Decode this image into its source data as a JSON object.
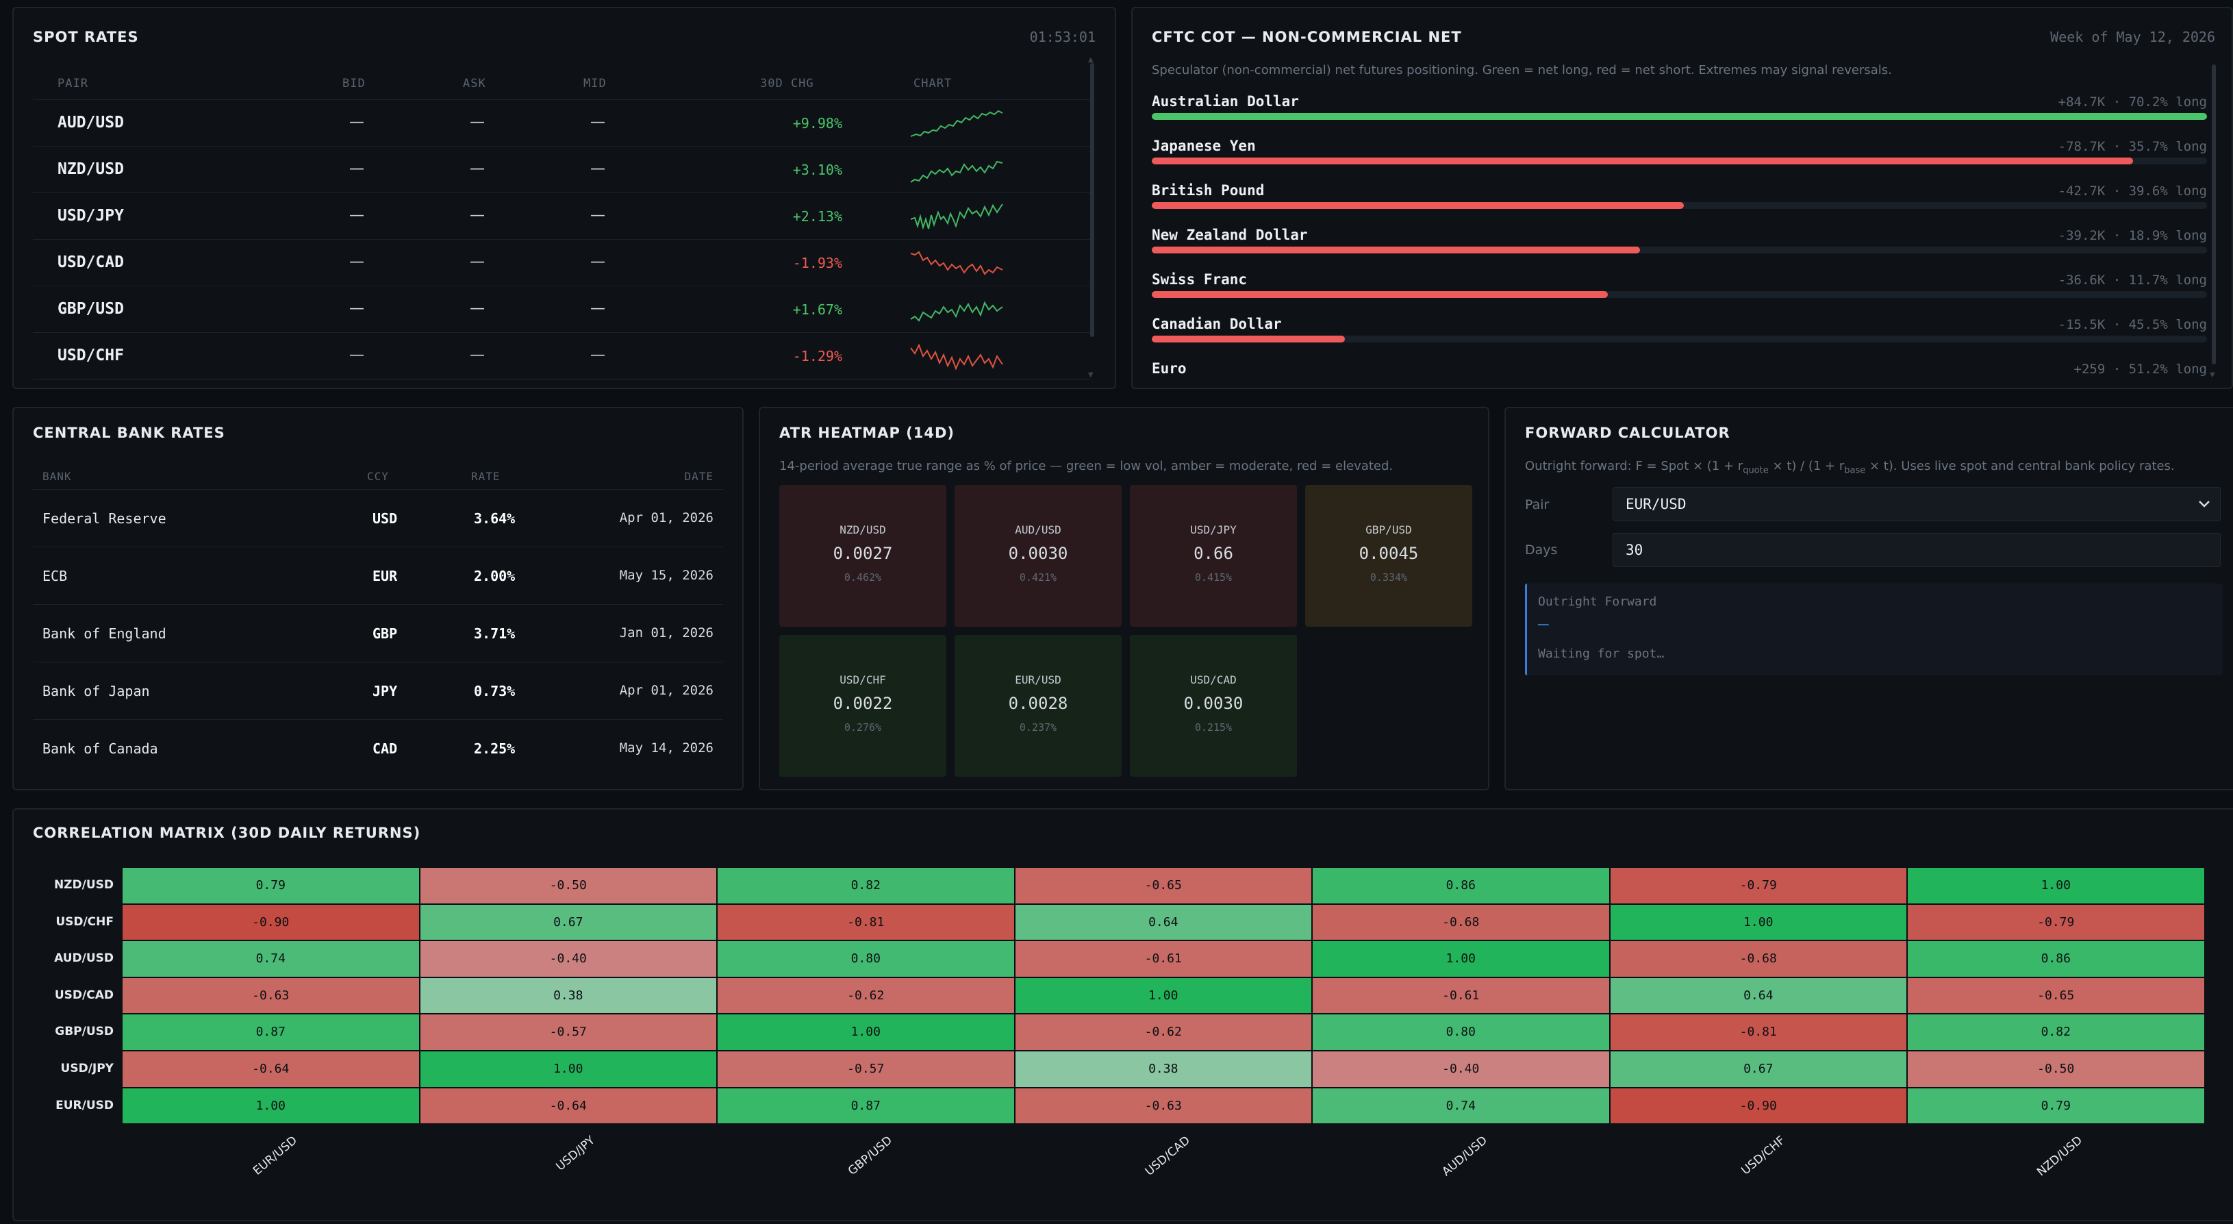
{
  "spot": {
    "title": "SPOT RATES",
    "time": "01:53:01",
    "headers": {
      "pair": "PAIR",
      "bid": "BID",
      "ask": "ASK",
      "mid": "MID",
      "chg": "30D CHG",
      "chart": "CHART"
    },
    "rows": [
      {
        "pair": "AUD/USD",
        "bid": "—",
        "ask": "—",
        "mid": "—",
        "chg": "+9.98%",
        "dir": "up"
      },
      {
        "pair": "NZD/USD",
        "bid": "—",
        "ask": "—",
        "mid": "—",
        "chg": "+3.10%",
        "dir": "up"
      },
      {
        "pair": "USD/JPY",
        "bid": "—",
        "ask": "—",
        "mid": "—",
        "chg": "+2.13%",
        "dir": "up"
      },
      {
        "pair": "USD/CAD",
        "bid": "—",
        "ask": "—",
        "mid": "—",
        "chg": "-1.93%",
        "dir": "down"
      },
      {
        "pair": "GBP/USD",
        "bid": "—",
        "ask": "—",
        "mid": "—",
        "chg": "+1.67%",
        "dir": "up"
      },
      {
        "pair": "USD/CHF",
        "bid": "—",
        "ask": "—",
        "mid": "—",
        "chg": "-1.29%",
        "dir": "down"
      }
    ]
  },
  "cot": {
    "title": "CFTC COT — NON-COMMERCIAL NET",
    "week": "Week of May 12, 2026",
    "desc": "Speculator (non-commercial) net futures positioning. Green = net long, red = net short. Extremes may signal reversals.",
    "rows": [
      {
        "name": "Australian Dollar",
        "value": "+84.7K · 70.2% long",
        "fill": 1.0,
        "color": "#4cc56a"
      },
      {
        "name": "Japanese Yen",
        "value": "-78.7K · 35.7% long",
        "fill": 0.93,
        "color": "#ef5b5b"
      },
      {
        "name": "British Pound",
        "value": "-42.7K · 39.6% long",
        "fill": 0.504,
        "color": "#ef5b5b"
      },
      {
        "name": "New Zealand Dollar",
        "value": "-39.2K · 18.9% long",
        "fill": 0.463,
        "color": "#ef5b5b"
      },
      {
        "name": "Swiss Franc",
        "value": "-36.6K · 11.7% long",
        "fill": 0.432,
        "color": "#ef5b5b"
      },
      {
        "name": "Canadian Dollar",
        "value": "-15.5K · 45.5% long",
        "fill": 0.183,
        "color": "#ef5b5b"
      },
      {
        "name": "Euro",
        "value": "+259 · 51.2% long",
        "fill": 0.003,
        "color": "#4cc56a"
      }
    ]
  },
  "cb": {
    "title": "CENTRAL BANK RATES",
    "headers": {
      "bank": "BANK",
      "ccy": "CCY",
      "rate": "RATE",
      "date": "DATE"
    },
    "rows": [
      {
        "bank": "Federal Reserve",
        "ccy": "USD",
        "rate": "3.64%",
        "date": "Apr 01, 2026"
      },
      {
        "bank": "ECB",
        "ccy": "EUR",
        "rate": "2.00%",
        "date": "May 15, 2026"
      },
      {
        "bank": "Bank of England",
        "ccy": "GBP",
        "rate": "3.71%",
        "date": "Jan 01, 2026"
      },
      {
        "bank": "Bank of Japan",
        "ccy": "JPY",
        "rate": "0.73%",
        "date": "Apr 01, 2026"
      },
      {
        "bank": "Bank of Canada",
        "ccy": "CAD",
        "rate": "2.25%",
        "date": "May 14, 2026"
      }
    ]
  },
  "atr": {
    "title": "ATR HEATMAP (14D)",
    "desc": "14-period average true range as % of price — green = low vol, amber = moderate, red = elevated.",
    "tiles": [
      {
        "pair": "NZD/USD",
        "value": "0.0027",
        "pct": "0.462%",
        "level": "high"
      },
      {
        "pair": "AUD/USD",
        "value": "0.0030",
        "pct": "0.421%",
        "level": "high"
      },
      {
        "pair": "USD/JPY",
        "value": "0.66",
        "pct": "0.415%",
        "level": "high"
      },
      {
        "pair": "GBP/USD",
        "value": "0.0045",
        "pct": "0.334%",
        "level": "moderate"
      },
      {
        "pair": "USD/CHF",
        "value": "0.0022",
        "pct": "0.276%",
        "level": "low"
      },
      {
        "pair": "EUR/USD",
        "value": "0.0028",
        "pct": "0.237%",
        "level": "low"
      },
      {
        "pair": "USD/CAD",
        "value": "0.0030",
        "pct": "0.215%",
        "level": "low"
      }
    ]
  },
  "forward": {
    "title": "FORWARD CALCULATOR",
    "desc_a": "Outright forward: F = Spot × (1 + r",
    "desc_quote": "quote",
    "desc_b": " × t) / (1 + r",
    "desc_base": "base",
    "desc_c": " × t). Uses live spot and central bank policy rates.",
    "pair_label": "Pair",
    "pair_value": "EUR/USD",
    "days_label": "Days",
    "days_value": "30",
    "result_label": "Outright Forward",
    "result_value": "—",
    "result_status": "Waiting for spot…"
  },
  "corr": {
    "title": "CORRELATION MATRIX (30D DAILY RETURNS)",
    "rows": [
      "NZD/USD",
      "USD/CHF",
      "AUD/USD",
      "USD/CAD",
      "GBP/USD",
      "USD/JPY",
      "EUR/USD"
    ],
    "cols": [
      "EUR/USD",
      "USD/JPY",
      "GBP/USD",
      "USD/CAD",
      "AUD/USD",
      "USD/CHF",
      "NZD/USD"
    ],
    "values": [
      [
        "0.79",
        "-0.50",
        "0.82",
        "-0.65",
        "0.86",
        "-0.79",
        "1.00"
      ],
      [
        "-0.90",
        "0.67",
        "-0.81",
        "0.64",
        "-0.68",
        "1.00",
        "-0.79"
      ],
      [
        "0.74",
        "-0.40",
        "0.80",
        "-0.61",
        "1.00",
        "-0.68",
        "0.86"
      ],
      [
        "-0.63",
        "0.38",
        "-0.62",
        "1.00",
        "-0.61",
        "0.64",
        "-0.65"
      ],
      [
        "0.87",
        "-0.57",
        "1.00",
        "-0.62",
        "0.80",
        "-0.81",
        "0.82"
      ],
      [
        "-0.64",
        "1.00",
        "-0.57",
        "0.38",
        "-0.40",
        "0.67",
        "-0.50"
      ],
      [
        "1.00",
        "-0.64",
        "0.87",
        "-0.63",
        "0.74",
        "-0.90",
        "0.79"
      ]
    ]
  }
}
